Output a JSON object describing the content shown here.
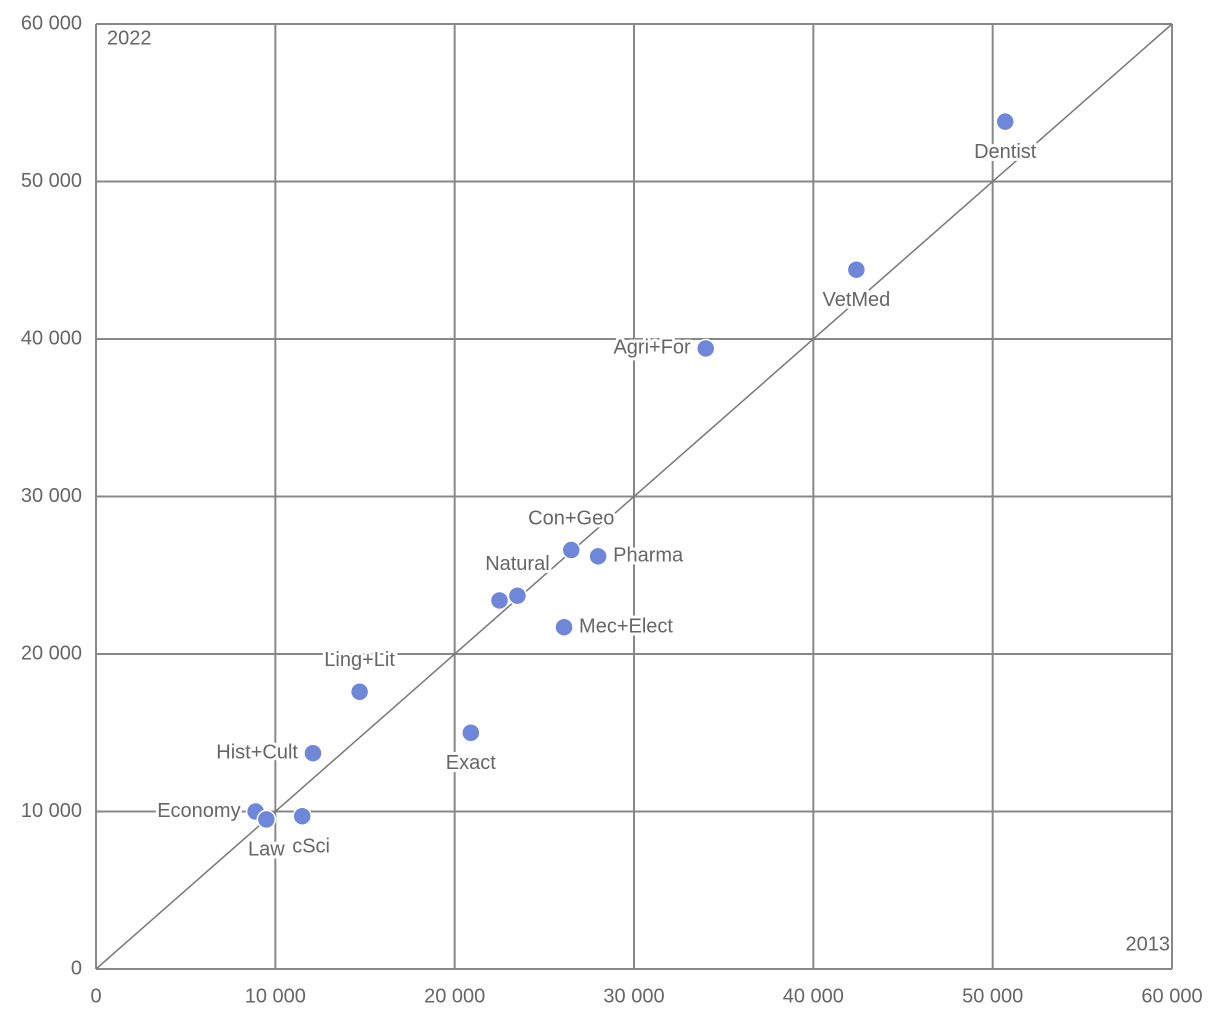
{
  "chart_data": {
    "type": "scatter",
    "x_label": "2013",
    "y_label": "2022",
    "color": "#6f87d8",
    "x": [
      50700,
      42400,
      34000,
      26500,
      28000,
      23500,
      22500,
      26100,
      14700,
      20900,
      12100,
      8900,
      9500,
      11500
    ],
    "values": [
      53800,
      44400,
      39400,
      26600,
      26200,
      23700,
      23400,
      21700,
      17600,
      15000,
      13700,
      10000,
      9500,
      9700
    ],
    "point_labels": [
      "Dentist",
      "VetMed",
      "Agri+For",
      "Con+Geo",
      "Pharma",
      "Natural",
      null,
      "Mec+Elect",
      "Ling+Lit",
      "Exact",
      "Hist+Cult",
      "Economy",
      "Law",
      "cSci"
    ],
    "xlim": [
      0,
      60000
    ],
    "ylim": [
      0,
      60000
    ],
    "xticks": [
      0,
      {
        "value": 10000,
        "label": "10 000"
      },
      {
        "value": 20000,
        "label": "20 000"
      },
      {
        "value": 30000,
        "label": "30 000"
      },
      {
        "value": 40000,
        "label": "40 000"
      },
      {
        "value": 50000,
        "label": "50 000"
      },
      {
        "value": 60000,
        "label": "60 000"
      }
    ],
    "yticks": [
      0,
      {
        "value": 10000,
        "label": "10 000"
      },
      {
        "value": 20000,
        "label": "20 000"
      },
      {
        "value": 30000,
        "label": "30 000"
      },
      {
        "value": 40000,
        "label": "40 000"
      },
      {
        "value": 50000,
        "label": "50 000"
      },
      {
        "value": 60000,
        "label": "60 000"
      }
    ],
    "grid": true,
    "diagonal": true
  }
}
